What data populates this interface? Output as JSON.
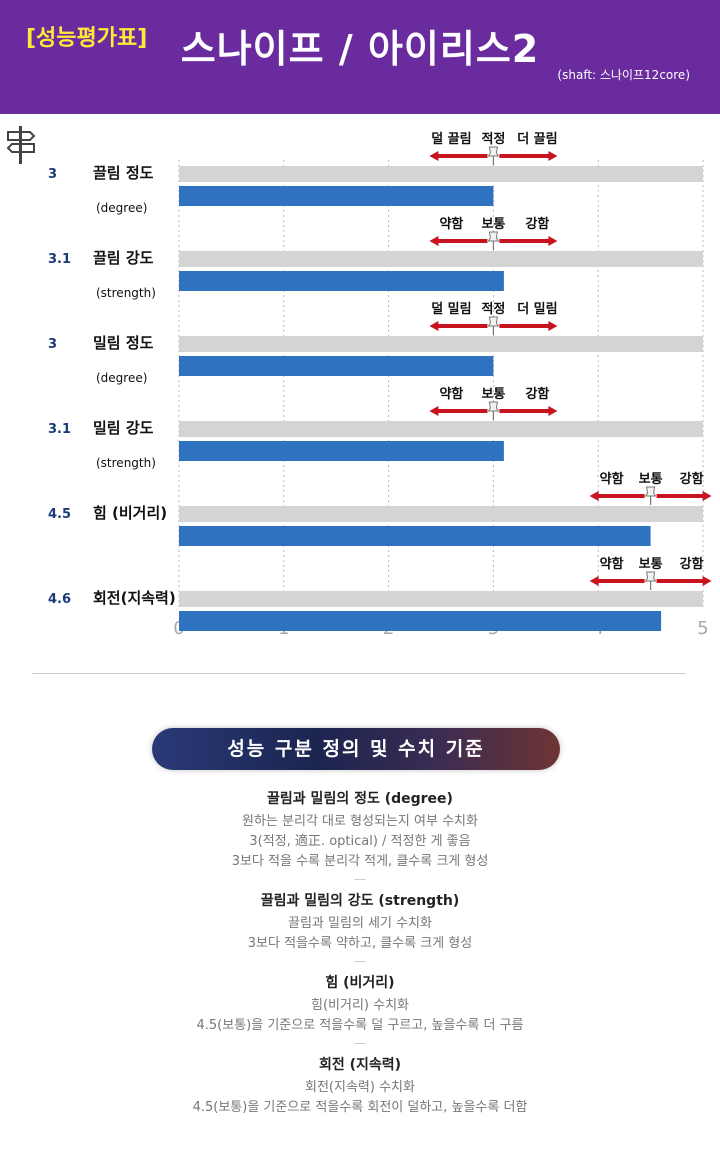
{
  "header": {
    "badge": "[성능평가표]",
    "title": "스나이프 / 아이리스2",
    "shaft": "(shaft: 스나이프12core)"
  },
  "colors": {
    "header_bg": "#6a2b9e",
    "badge_text": "#ffe838",
    "bar": "#2e72c0",
    "track": "#d4d4d4",
    "arrow": "#c8141e",
    "value_text": "#1b3a78"
  },
  "chart_data": {
    "type": "bar",
    "orientation": "horizontal",
    "xlim": [
      0,
      5
    ],
    "x_ticks": [
      "0",
      "1",
      "2",
      "3",
      "4",
      "5"
    ],
    "grid": true,
    "categories": [
      {
        "value_label": "3",
        "name": "끌림 정도",
        "sub": "(degree)",
        "value": 3.0,
        "center": 3.0,
        "scale": [
          "덜 끌림",
          "적정",
          "더 끌림"
        ]
      },
      {
        "value_label": "3.1",
        "name": "끌림 강도",
        "sub": "(strength)",
        "value": 3.1,
        "center": 3.0,
        "scale": [
          "약함",
          "보통",
          "강함"
        ]
      },
      {
        "value_label": "3",
        "name": "밀림 정도",
        "sub": "(degree)",
        "value": 3.0,
        "center": 3.0,
        "scale": [
          "덜 밀림",
          "적정",
          "더 밀림"
        ]
      },
      {
        "value_label": "3.1",
        "name": "밀림 강도",
        "sub": "(strength)",
        "value": 3.1,
        "center": 3.0,
        "scale": [
          "약함",
          "보통",
          "강함"
        ]
      },
      {
        "value_label": "4.5",
        "name": "힘 (비거리)",
        "sub": "",
        "value": 4.5,
        "center": 4.5,
        "scale": [
          "약함",
          "보통",
          "강함"
        ]
      },
      {
        "value_label": "4.6",
        "name": "회전(지속력)",
        "sub": "",
        "value": 4.6,
        "center": 4.5,
        "scale": [
          "약함",
          "보통",
          "강함"
        ]
      }
    ]
  },
  "definitions": {
    "banner": "성능 구분 정의 및 수치 기준",
    "blocks": [
      {
        "heading": "끌림과 밀림의 정도 (degree)",
        "lines": [
          "원하는 분리각 대로 형성되는지 여부 수치화",
          "3(적정, 適正. optical) / 적정한 게 좋음",
          "3보다 적을 수록 분리각 적게, 클수록 크게 형성"
        ]
      },
      {
        "heading": "끌림과 밀림의 강도 (strength)",
        "lines": [
          "끌림과 밀림의 세기 수치화",
          "3보다 적을수록 약하고, 클수록 크게 형성"
        ]
      },
      {
        "heading": "힘 (비거리)",
        "lines": [
          "힘(비거리) 수치화",
          "4.5(보통)을 기준으로 적을수록 덜 구르고, 높을수록 더 구름"
        ]
      },
      {
        "heading": "회전 (지속력)",
        "lines": [
          "회전(지속력) 수치화",
          "4.5(보통)을 기준으로 적을수록 회전이 덜하고, 높을수록 더함"
        ]
      }
    ]
  }
}
